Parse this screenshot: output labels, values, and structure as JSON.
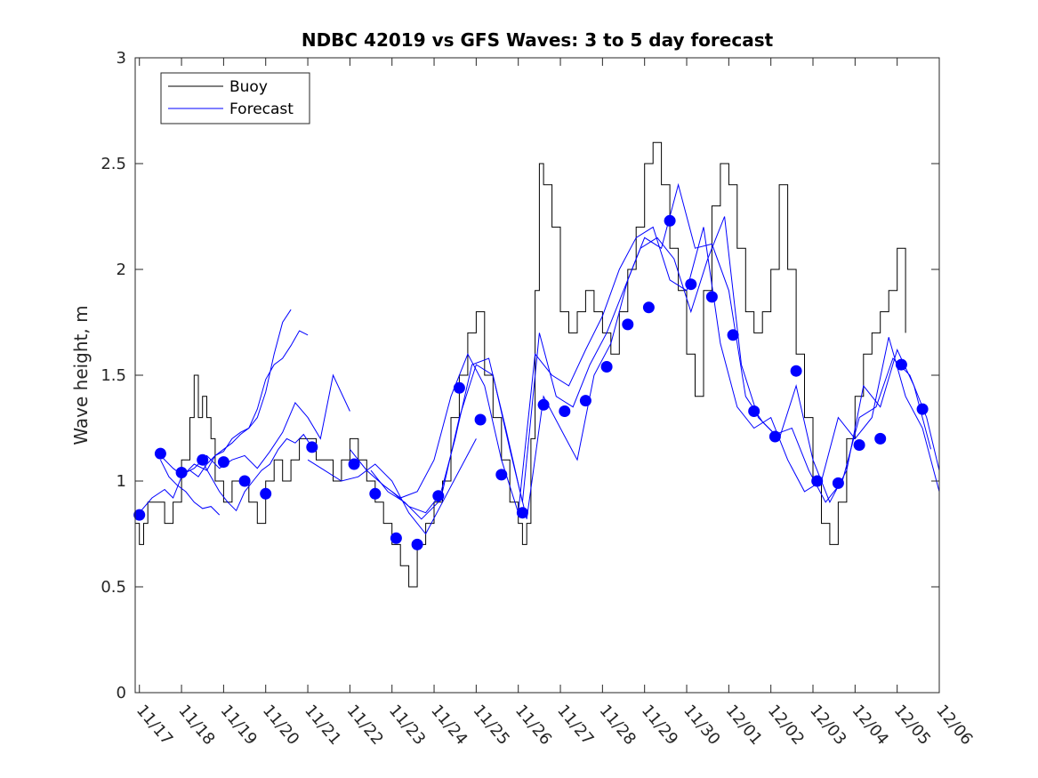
{
  "chart_data": {
    "type": "line",
    "title": "NDBC 42019 vs GFS Waves: 3 to 5 day forecast",
    "xlabel": "",
    "ylabel": "Wave height, m",
    "ylim": [
      0,
      3
    ],
    "yticks": [
      0,
      0.5,
      1,
      1.5,
      2,
      2.5,
      3
    ],
    "ytick_labels": [
      "0",
      "0.5",
      "1",
      "1.5",
      "2",
      "2.5",
      "3"
    ],
    "xlim": [
      -0.1,
      19.0
    ],
    "xticks": [
      0,
      1,
      2,
      3,
      4,
      5,
      6,
      7,
      8,
      9,
      10,
      11,
      12,
      13,
      14,
      15,
      16,
      17,
      18,
      19
    ],
    "xtick_labels": [
      "11/17",
      "11/18",
      "11/19",
      "11/20",
      "11/21",
      "11/22",
      "11/23",
      "11/24",
      "11/25",
      "11/26",
      "11/27",
      "11/28",
      "11/29",
      "11/30",
      "12/01",
      "12/02",
      "12/03",
      "12/04",
      "12/05",
      "12/06"
    ],
    "legend": {
      "position": "top-left",
      "entries": [
        "Buoy",
        "Forecast"
      ]
    },
    "colors": {
      "buoy": "#000000",
      "forecast": "#0000ff",
      "markers": "#0000ff"
    },
    "buoy": {
      "name": "Buoy",
      "x": [
        -0.1,
        0.0,
        0.1,
        0.2,
        0.4,
        0.6,
        0.8,
        1.0,
        1.2,
        1.3,
        1.4,
        1.5,
        1.6,
        1.7,
        1.8,
        2.0,
        2.2,
        2.4,
        2.6,
        2.8,
        3.0,
        3.2,
        3.4,
        3.6,
        3.8,
        4.0,
        4.2,
        4.4,
        4.6,
        4.8,
        5.0,
        5.2,
        5.4,
        5.6,
        5.8,
        6.0,
        6.2,
        6.4,
        6.6,
        6.8,
        7.0,
        7.2,
        7.4,
        7.6,
        7.8,
        8.0,
        8.2,
        8.4,
        8.6,
        8.8,
        9.0,
        9.1,
        9.2,
        9.3,
        9.4,
        9.5,
        9.6,
        9.8,
        10.0,
        10.2,
        10.4,
        10.6,
        10.8,
        11.0,
        11.2,
        11.4,
        11.6,
        11.8,
        12.0,
        12.2,
        12.4,
        12.6,
        12.8,
        13.0,
        13.2,
        13.4,
        13.6,
        13.8,
        14.0,
        14.2,
        14.4,
        14.6,
        14.8,
        15.0,
        15.2,
        15.4,
        15.6,
        15.8,
        16.0,
        16.2,
        16.4,
        16.6,
        16.8,
        17.0,
        17.2,
        17.4,
        17.6,
        17.8,
        18.0,
        18.2
      ],
      "values": [
        0.8,
        0.7,
        0.8,
        0.9,
        0.9,
        0.8,
        0.9,
        1.1,
        1.3,
        1.5,
        1.3,
        1.4,
        1.3,
        1.2,
        1.0,
        0.9,
        1.0,
        1.0,
        0.9,
        0.8,
        1.0,
        1.1,
        1.0,
        1.1,
        1.2,
        1.2,
        1.1,
        1.1,
        1.0,
        1.1,
        1.2,
        1.1,
        1.0,
        0.9,
        0.8,
        0.7,
        0.6,
        0.5,
        0.7,
        0.8,
        0.9,
        1.0,
        1.3,
        1.5,
        1.7,
        1.8,
        1.5,
        1.3,
        1.1,
        0.9,
        0.8,
        0.7,
        0.8,
        1.2,
        1.9,
        2.5,
        2.4,
        2.2,
        1.8,
        1.7,
        1.8,
        1.9,
        1.8,
        1.7,
        1.6,
        1.8,
        2.0,
        2.2,
        2.5,
        2.6,
        2.4,
        2.1,
        1.9,
        1.6,
        1.4,
        1.9,
        2.3,
        2.5,
        2.4,
        2.1,
        1.8,
        1.7,
        1.8,
        2.0,
        2.4,
        2.0,
        1.6,
        1.3,
        1.0,
        0.8,
        0.7,
        0.9,
        1.2,
        1.4,
        1.6,
        1.7,
        1.8,
        1.9,
        2.1,
        1.7
      ]
    },
    "forecast_runs": [
      {
        "name": "Forecast",
        "x": [
          0.0,
          0.3,
          0.6,
          0.8,
          1.0,
          1.3,
          1.6,
          1.8,
          2.0,
          2.2,
          2.4,
          2.6,
          2.8,
          3.0,
          3.2,
          3.4,
          3.6
        ],
        "values": [
          0.85,
          0.92,
          0.96,
          0.92,
          1.02,
          1.08,
          1.05,
          1.12,
          1.15,
          1.18,
          1.22,
          1.25,
          1.3,
          1.42,
          1.6,
          1.75,
          1.81
        ]
      },
      {
        "name": "Forecast",
        "x": [
          0.5,
          0.8,
          1.0,
          1.2,
          1.4,
          1.6,
          1.8,
          2.0,
          2.2,
          2.4,
          2.6,
          2.8,
          3.0,
          3.2,
          3.4,
          3.6,
          3.8,
          4.0
        ],
        "values": [
          1.12,
          1.06,
          1.03,
          1.05,
          1.02,
          1.08,
          1.12,
          1.14,
          1.2,
          1.23,
          1.25,
          1.34,
          1.48,
          1.55,
          1.58,
          1.64,
          1.71,
          1.69
        ]
      },
      {
        "name": "Forecast",
        "x": [
          1.0,
          1.3,
          1.6,
          1.9,
          2.2,
          2.5,
          2.8,
          3.1,
          3.4,
          3.7,
          4.0,
          4.3,
          4.6,
          5.0
        ],
        "values": [
          1.03,
          1.06,
          1.12,
          1.06,
          1.1,
          1.12,
          1.06,
          1.14,
          1.23,
          1.37,
          1.3,
          1.2,
          1.5,
          1.33
        ]
      },
      {
        "name": "Forecast",
        "x": [
          1.5,
          1.7,
          1.9,
          2.1,
          2.3,
          2.5,
          2.7,
          2.9,
          3.1,
          3.3,
          3.5,
          3.7,
          3.9,
          4.1
        ],
        "values": [
          1.09,
          1.02,
          0.95,
          0.9,
          0.86,
          0.95,
          1.0,
          1.05,
          1.08,
          1.15,
          1.2,
          1.18,
          1.22,
          1.16
        ]
      },
      {
        "name": "Forecast",
        "x": [
          0.5,
          0.7,
          0.9,
          1.1,
          1.3,
          1.5,
          1.7,
          1.9
        ],
        "values": [
          1.1,
          1.02,
          0.98,
          0.95,
          0.9,
          0.87,
          0.88,
          0.84
        ]
      },
      {
        "name": "Forecast",
        "x": [
          5.0,
          5.4,
          5.8,
          6.2,
          6.6,
          7.0,
          7.4,
          7.8,
          8.2,
          8.6,
          9.0,
          9.4,
          9.8,
          10.2,
          10.6,
          11.0,
          11.4,
          11.8,
          12.2,
          12.6,
          13.0,
          13.4,
          13.8,
          14.2,
          14.6,
          15.0,
          15.4,
          15.8,
          16.2,
          16.6,
          17.0,
          17.4,
          17.8,
          18.2,
          18.6,
          19.0
        ],
        "values": [
          1.15,
          1.05,
          0.98,
          0.92,
          0.95,
          1.1,
          1.4,
          1.6,
          1.45,
          1.1,
          0.85,
          1.6,
          1.5,
          1.45,
          1.62,
          1.78,
          2.0,
          2.15,
          2.2,
          1.95,
          1.9,
          2.2,
          1.65,
          1.35,
          1.25,
          1.3,
          1.1,
          0.95,
          1.0,
          1.3,
          1.2,
          1.3,
          1.68,
          1.4,
          1.25,
          0.95
        ]
      },
      {
        "name": "Forecast",
        "x": [
          5.5,
          5.9,
          6.3,
          6.7,
          7.1,
          7.5,
          7.9,
          8.3,
          8.7,
          9.1,
          9.5,
          9.9,
          10.3,
          10.7,
          11.1,
          11.5,
          11.9,
          12.3,
          12.7,
          13.1,
          13.5,
          13.9,
          14.3,
          14.7,
          15.1,
          15.5,
          15.9,
          16.3,
          16.7,
          17.1,
          17.5,
          17.9,
          18.3,
          18.7,
          19.0
        ],
        "values": [
          1.05,
          0.95,
          0.9,
          0.82,
          0.9,
          1.2,
          1.55,
          1.58,
          1.25,
          0.9,
          1.7,
          1.4,
          1.35,
          1.55,
          1.7,
          1.9,
          2.1,
          2.15,
          2.05,
          1.8,
          2.05,
          2.25,
          1.55,
          1.3,
          1.22,
          1.25,
          1.05,
          0.9,
          1.0,
          1.3,
          1.35,
          1.58,
          1.5,
          1.3,
          1.05
        ]
      },
      {
        "name": "Forecast",
        "x": [
          6.0,
          6.4,
          6.8,
          7.2,
          7.6,
          8.0,
          8.4,
          8.8,
          9.2,
          9.6,
          10.0,
          10.4,
          10.8,
          11.2,
          11.6,
          12.0,
          12.4,
          12.8,
          13.2,
          13.6,
          14.0,
          14.4,
          14.8,
          15.2,
          15.6,
          16.0,
          16.4,
          16.8,
          17.2,
          17.6,
          18.0,
          18.4,
          18.8
        ],
        "values": [
          0.95,
          0.88,
          0.85,
          0.95,
          1.3,
          1.55,
          1.5,
          1.15,
          0.82,
          1.4,
          1.25,
          1.1,
          1.5,
          1.65,
          1.95,
          2.15,
          2.1,
          2.4,
          2.1,
          2.12,
          1.9,
          1.4,
          1.28,
          1.2,
          1.45,
          1.1,
          0.9,
          1.05,
          1.45,
          1.35,
          1.62,
          1.45,
          1.15
        ]
      },
      {
        "name": "Forecast",
        "x": [
          4.0,
          4.4,
          4.8,
          5.2,
          5.6,
          6.0,
          6.4,
          6.8,
          7.2,
          7.6,
          8.0
        ],
        "values": [
          1.1,
          1.05,
          1.0,
          1.02,
          1.08,
          1.0,
          0.85,
          0.75,
          0.9,
          1.05,
          1.2
        ]
      }
    ],
    "markers": {
      "name": "Forecast",
      "x": [
        0.0,
        0.5,
        1.0,
        1.5,
        2.0,
        2.5,
        3.0,
        4.1,
        5.1,
        5.6,
        6.1,
        6.6,
        7.1,
        7.6,
        8.1,
        8.6,
        9.1,
        9.6,
        10.1,
        10.6,
        11.1,
        11.6,
        12.1,
        12.6,
        13.1,
        13.6,
        14.1,
        14.6,
        15.1,
        15.6,
        16.1,
        16.6,
        17.1,
        17.6,
        18.1,
        18.6
      ],
      "values": [
        0.84,
        1.13,
        1.04,
        1.1,
        1.09,
        1.0,
        0.94,
        1.16,
        1.08,
        0.94,
        0.73,
        0.7,
        0.93,
        1.44,
        1.29,
        1.03,
        0.85,
        1.36,
        1.33,
        1.38,
        1.54,
        1.74,
        1.82,
        2.23,
        1.93,
        1.87,
        1.69,
        1.33,
        1.21,
        1.52,
        1.0,
        0.99,
        1.17,
        1.2,
        1.55,
        1.34
      ]
    }
  }
}
